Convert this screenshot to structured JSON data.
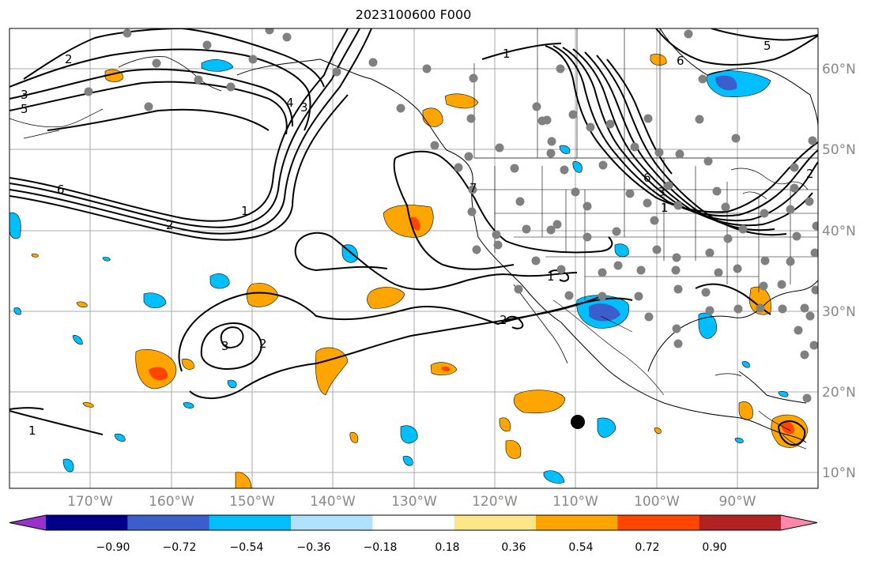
{
  "title": "2023100600 F000",
  "lon_labels": [
    "170°W",
    "160°W",
    "150°W",
    "140°W",
    "130°W",
    "120°W",
    "110°W",
    "100°W",
    "90°W"
  ],
  "lat_labels": [
    "60°N",
    "50°N",
    "40°N",
    "30°N",
    "20°N",
    "10°N"
  ],
  "colorbar": {
    "ticks": [
      "−0.90",
      "−0.72",
      "−0.54",
      "−0.36",
      "−0.18",
      "0.18",
      "0.36",
      "0.54",
      "0.72",
      "0.90"
    ],
    "colors": [
      "#9932cc",
      "#00008b",
      "#3a5fcd",
      "#00bfff",
      "#b0e2ff",
      "#ffffff",
      "#fde68a",
      "#ffa500",
      "#ff4500",
      "#b22222",
      "#ff88aa"
    ]
  },
  "contour_labels": [
    "2",
    "3",
    "5",
    "6",
    "2",
    "1",
    "4",
    "3",
    "1",
    "6",
    "5",
    "6",
    "3",
    "2",
    "1",
    "7",
    "2",
    "1",
    "3",
    "2",
    "1"
  ]
}
